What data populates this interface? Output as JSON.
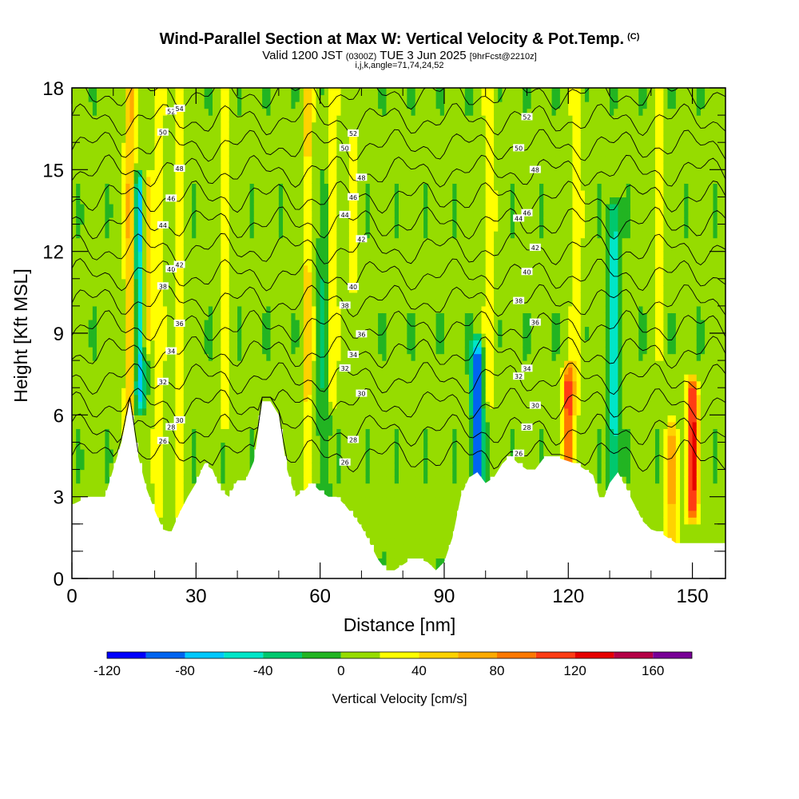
{
  "title": {
    "main": "Wind-Parallel Section at Max W: Vertical Velocity & Pot.Temp.",
    "copyright": "(C)",
    "valid_prefix": "Valid 1200 JST",
    "valid_utc": "(0300Z)",
    "valid_date": "TUE 3 Jun 2025",
    "forecast": "[9hrFcst@2210z]",
    "indices": "i,j,k,angle=71,74,24,52"
  },
  "chart_data": {
    "type": "heatmap",
    "xlabel": "Distance [nm]",
    "ylabel": "Height [Kft MSL]",
    "xlim": [
      0,
      158
    ],
    "ylim": [
      0,
      18
    ],
    "x_ticks": [
      "0",
      "30",
      "60",
      "90",
      "120",
      "150"
    ],
    "x_tick_values": [
      0,
      30,
      60,
      90,
      120,
      150
    ],
    "y_ticks": [
      "0",
      "3",
      "6",
      "9",
      "12",
      "15",
      "18"
    ],
    "y_tick_values": [
      0,
      3,
      6,
      9,
      12,
      15,
      18
    ],
    "colorbar": {
      "label": "Vertical Velocity [cm/s]",
      "tick_labels": [
        "-120",
        "-80",
        "-40",
        "0",
        "40",
        "80",
        "120",
        "160"
      ],
      "tick_values": [
        -120,
        -80,
        -40,
        0,
        40,
        80,
        120,
        160
      ],
      "range": [
        -120,
        180
      ],
      "bins": [
        -120,
        -100,
        -80,
        -60,
        -40,
        -20,
        0,
        20,
        40,
        60,
        80,
        100,
        120,
        140,
        160,
        180
      ],
      "colors": [
        "#0000ff",
        "#0064f0",
        "#00c8ff",
        "#00e6c8",
        "#00c86e",
        "#22b422",
        "#96dc00",
        "#ffff00",
        "#ffd200",
        "#ffaa00",
        "#ff7800",
        "#ff3c14",
        "#e60000",
        "#b40046",
        "#780096"
      ]
    },
    "terrain": [
      [
        0,
        2.7
      ],
      [
        4,
        3.0
      ],
      [
        8,
        3.0
      ],
      [
        12,
        5.0
      ],
      [
        14,
        6.5
      ],
      [
        16,
        4.5
      ],
      [
        18,
        3.3
      ],
      [
        20,
        2.5
      ],
      [
        22,
        1.8
      ],
      [
        24,
        1.7
      ],
      [
        26,
        2.4
      ],
      [
        28,
        3.0
      ],
      [
        30,
        3.5
      ],
      [
        32,
        4.2
      ],
      [
        34,
        4.0
      ],
      [
        36,
        3.2
      ],
      [
        38,
        3.0
      ],
      [
        40,
        3.6
      ],
      [
        42,
        3.6
      ],
      [
        44,
        4.3
      ],
      [
        46,
        6.5
      ],
      [
        48,
        6.5
      ],
      [
        50,
        6.0
      ],
      [
        52,
        4.0
      ],
      [
        54,
        3.0
      ],
      [
        56,
        3.2
      ],
      [
        58,
        3.5
      ],
      [
        60,
        3.2
      ],
      [
        62,
        3.0
      ],
      [
        64,
        3.0
      ],
      [
        66,
        2.7
      ],
      [
        68,
        2.3
      ],
      [
        70,
        1.9
      ],
      [
        72,
        1.3
      ],
      [
        74,
        0.7
      ],
      [
        76,
        0.3
      ],
      [
        78,
        0.3
      ],
      [
        80,
        0.5
      ],
      [
        82,
        0.7
      ],
      [
        84,
        0.7
      ],
      [
        86,
        0.6
      ],
      [
        88,
        0.3
      ],
      [
        90,
        0.6
      ],
      [
        92,
        1.5
      ],
      [
        94,
        3.0
      ],
      [
        96,
        3.7
      ],
      [
        98,
        3.9
      ],
      [
        100,
        3.5
      ],
      [
        102,
        3.7
      ],
      [
        104,
        4.2
      ],
      [
        106,
        4.5
      ],
      [
        108,
        4.2
      ],
      [
        110,
        4.0
      ],
      [
        112,
        4.0
      ],
      [
        114,
        4.4
      ],
      [
        116,
        4.4
      ],
      [
        118,
        4.4
      ],
      [
        120,
        4.3
      ],
      [
        122,
        4.2
      ],
      [
        124,
        4.0
      ],
      [
        126,
        3.8
      ],
      [
        128,
        2.7
      ],
      [
        130,
        3.5
      ],
      [
        132,
        3.9
      ],
      [
        134,
        3.3
      ],
      [
        136,
        2.7
      ],
      [
        138,
        2.1
      ],
      [
        140,
        1.8
      ],
      [
        142,
        1.7
      ],
      [
        144,
        1.5
      ],
      [
        146,
        1.3
      ],
      [
        148,
        1.3
      ],
      [
        150,
        1.3
      ],
      [
        152,
        1.3
      ],
      [
        154,
        1.3
      ],
      [
        156,
        1.3
      ],
      [
        158,
        1.3
      ]
    ],
    "updrafts": [
      {
        "x": 14,
        "zmin": 3,
        "zmax": 18,
        "w": 60
      },
      {
        "x": 16.5,
        "zmin": 7,
        "zmax": 14,
        "w": -80
      },
      {
        "x": 18,
        "zmin": 9,
        "zmax": 14,
        "w": 60
      },
      {
        "x": 21,
        "zmin": 3,
        "zmax": 18,
        "w": 30
      },
      {
        "x": 26,
        "zmin": 3,
        "zmax": 18,
        "w": 30
      },
      {
        "x": 37,
        "zmin": 6,
        "zmax": 18,
        "w": 30
      },
      {
        "x": 57,
        "zmin": 3,
        "zmax": 18,
        "w": 40
      },
      {
        "x": 61,
        "zmin": 3,
        "zmax": 14,
        "w": -30
      },
      {
        "x": 63,
        "zmin": 7,
        "zmax": 18,
        "w": 30
      },
      {
        "x": 68,
        "zmin": 8,
        "zmax": 18,
        "w": 20
      },
      {
        "x": 98,
        "zmin": 4,
        "zmax": 8,
        "w": -110
      },
      {
        "x": 101,
        "zmin": 7,
        "zmax": 18,
        "w": 30
      },
      {
        "x": 120,
        "zmin": 4.4,
        "zmax": 7,
        "w": 110
      },
      {
        "x": 122,
        "zmin": 7,
        "zmax": 18,
        "w": 30
      },
      {
        "x": 131,
        "zmin": 4,
        "zmax": 13,
        "w": -60
      },
      {
        "x": 145,
        "zmin": 1.5,
        "zmax": 5,
        "w": 60
      },
      {
        "x": 150,
        "zmin": 3,
        "zmax": 6.5,
        "w": 130
      },
      {
        "x": 142,
        "zmin": 9,
        "zmax": 18,
        "w": 30
      }
    ],
    "isentropes": {
      "values": [
        "26",
        "28",
        "30",
        "32",
        "34",
        "36",
        "38",
        "40",
        "42",
        "44",
        "46",
        "48",
        "50",
        "52",
        "54"
      ],
      "base_height": 4.5,
      "spacing": 0.95
    }
  }
}
